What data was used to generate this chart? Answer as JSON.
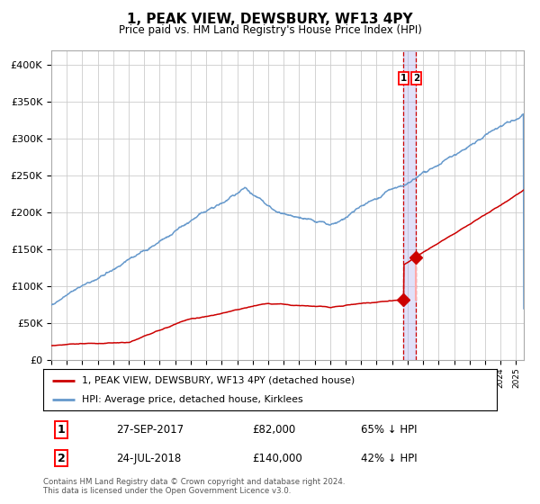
{
  "title": "1, PEAK VIEW, DEWSBURY, WF13 4PY",
  "subtitle": "Price paid vs. HM Land Registry's House Price Index (HPI)",
  "ytick_values": [
    0,
    50000,
    100000,
    150000,
    200000,
    250000,
    300000,
    350000,
    400000
  ],
  "ylim": [
    0,
    420000
  ],
  "xlim_start": 1995.0,
  "xlim_end": 2025.5,
  "sale1_x": 2017.73,
  "sale1_y": 82000,
  "sale1_label": "27-SEP-2017",
  "sale1_price": "£82,000",
  "sale1_hpi": "65% ↓ HPI",
  "sale2_x": 2018.55,
  "sale2_y": 140000,
  "sale2_label": "24-JUL-2018",
  "sale2_price": "£140,000",
  "sale2_hpi": "42% ↓ HPI",
  "legend_line1": "1, PEAK VIEW, DEWSBURY, WF13 4PY (detached house)",
  "legend_line2": "HPI: Average price, detached house, Kirklees",
  "footnote": "Contains HM Land Registry data © Crown copyright and database right 2024.\nThis data is licensed under the Open Government Licence v3.0.",
  "line_color_red": "#cc0000",
  "line_color_blue": "#6699cc",
  "vline_color": "#cc0000",
  "vband_color": "#aaaaee",
  "background_color": "#ffffff",
  "grid_color": "#cccccc"
}
